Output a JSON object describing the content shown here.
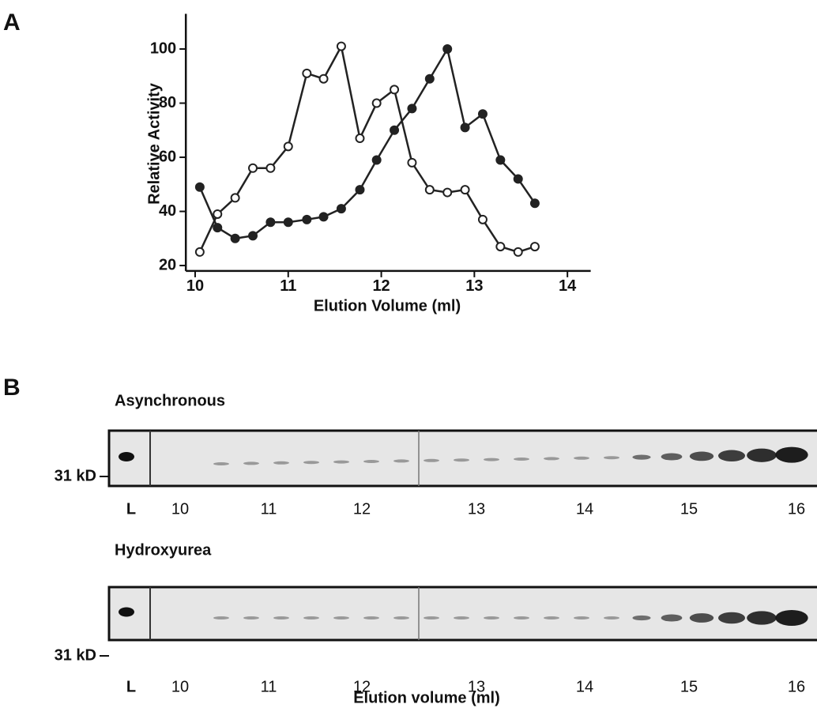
{
  "panel_labels": {
    "a": "A",
    "b": "B"
  },
  "chart_data": {
    "type": "line",
    "x_label": "Elution Volume (ml)",
    "y_label": "Relative Activity",
    "x": [
      10.05,
      10.24,
      10.43,
      10.62,
      10.81,
      11.0,
      11.2,
      11.38,
      11.57,
      11.77,
      11.95,
      12.14,
      12.33,
      12.52,
      12.71,
      12.9,
      13.09,
      13.28,
      13.47,
      13.65
    ],
    "xlim": [
      9.9,
      14.25
    ],
    "ylim": [
      18,
      113
    ],
    "xticks": [
      10,
      11,
      12,
      13,
      14
    ],
    "yticks": [
      20,
      40,
      60,
      80,
      100
    ],
    "series": [
      {
        "marker": "open",
        "color": "#222222",
        "values": [
          25,
          39,
          45,
          56,
          56,
          64,
          91,
          89,
          101,
          67,
          80,
          85,
          58,
          48,
          47,
          48,
          37,
          27,
          25,
          27
        ]
      },
      {
        "marker": "filled",
        "color": "#222222",
        "values": [
          49,
          34,
          30,
          31,
          36,
          36,
          37,
          38,
          41,
          48,
          59,
          70,
          78,
          89,
          100,
          71,
          76,
          59,
          52,
          43
        ]
      }
    ]
  },
  "blots": [
    {
      "title": "Asynchronous",
      "size_marker": "31 kD",
      "lanes": [
        "L",
        "10",
        "11",
        "12",
        "13",
        "14",
        "15",
        "16"
      ]
    },
    {
      "title": "Hydroxyurea",
      "size_marker": "31 kD",
      "lanes": [
        "L",
        "10",
        "11",
        "12",
        "13",
        "14",
        "15",
        "16"
      ]
    }
  ],
  "blot_x_label": "Elution volume (ml)"
}
